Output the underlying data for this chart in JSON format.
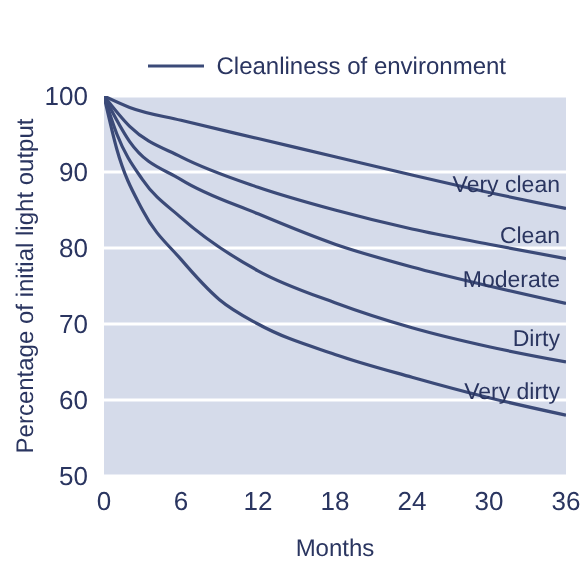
{
  "chart_data": {
    "type": "line",
    "legend_title": "Cleanliness of environment",
    "xlabel": "Months",
    "ylabel": "Percentage of initial light output",
    "xlim": [
      0,
      36
    ],
    "xticks": [
      0,
      6,
      12,
      18,
      24,
      30,
      36
    ],
    "ylim": [
      50,
      100
    ],
    "yticks": [
      50,
      60,
      70,
      80,
      90,
      100
    ],
    "grid": "y",
    "marker": "none",
    "line_style": "solid",
    "series": [
      {
        "name": "Very clean",
        "color": "#3b4a78",
        "x": [
          0,
          2,
          6,
          12,
          18,
          24,
          30,
          36
        ],
        "values": [
          100,
          98.5,
          96.8,
          94.4,
          92,
          89.6,
          87.3,
          85.2
        ]
      },
      {
        "name": "Clean",
        "color": "#3b4a78",
        "x": [
          0,
          2,
          6,
          12,
          18,
          24,
          30,
          36
        ],
        "values": [
          100,
          96,
          92,
          88,
          85,
          82.5,
          80.5,
          78.6
        ]
      },
      {
        "name": "Moderate",
        "color": "#3b4a78",
        "x": [
          0,
          2,
          6,
          12,
          18,
          24,
          30,
          36
        ],
        "values": [
          100,
          94,
          89,
          84.5,
          80.5,
          77.5,
          75,
          72.7
        ]
      },
      {
        "name": "Dirty",
        "color": "#3b4a78",
        "x": [
          0,
          1,
          3,
          6,
          12,
          18,
          24,
          30,
          36
        ],
        "values": [
          100,
          95,
          89,
          84,
          77,
          72.8,
          69.5,
          67,
          65
        ]
      },
      {
        "name": "Very dirty",
        "color": "#3b4a78",
        "x": [
          0,
          1,
          3,
          6,
          9,
          12,
          18,
          24,
          30,
          36
        ],
        "values": [
          100,
          93,
          85,
          78.5,
          73.2,
          70,
          66,
          63,
          60.3,
          58
        ]
      }
    ]
  }
}
